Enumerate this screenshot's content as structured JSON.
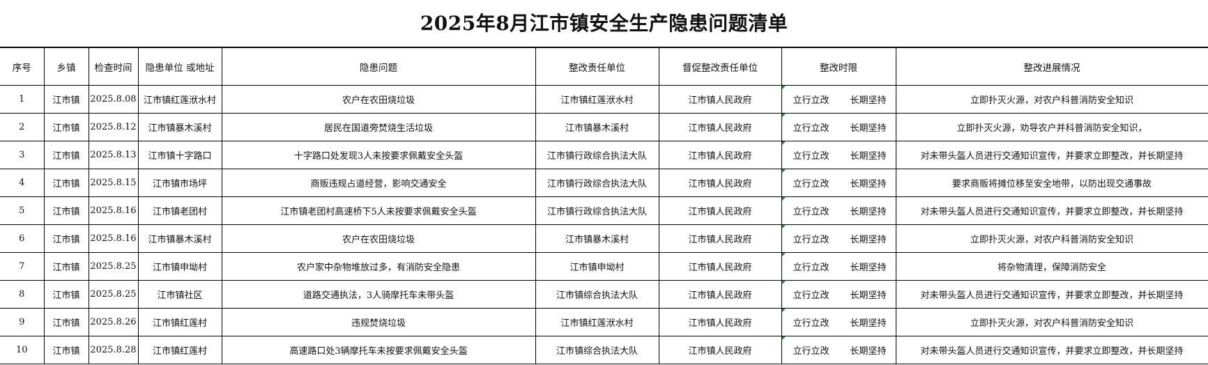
{
  "title": "2025年8月江市镇安全生产隐患问题清单",
  "headers": [
    "序号",
    "乡镇",
    "检查时间",
    "隐患单位 或地址",
    "隐患问题",
    "整改责任单位",
    "督促整改责任单位",
    "整改时限",
    "整改进展情况"
  ],
  "comment_indicator_color": "#1a8a1a",
  "rows": [
    {
      "no": "1",
      "town": "江市镇",
      "date": "2025.8.08",
      "unit": "江市镇红莲洑水村",
      "issue": "农户在农田烧垃圾",
      "resp": "江市镇红莲洑水村",
      "super": "江市镇人民政府",
      "deadline_a": "立行立改",
      "deadline_b": "长期坚持",
      "progress": "立即扑灭火源，对农户科普消防安全知识"
    },
    {
      "no": "2",
      "town": "江市镇",
      "date": "2025.8.12",
      "unit": "江市镇暴木溪村",
      "issue": "居民在国道旁焚烧生活垃圾",
      "resp": "江市镇暴木溪村",
      "super": "江市镇人民政府",
      "deadline_a": "立行立改",
      "deadline_b": "长期坚持",
      "progress": "立即扑灭火源，劝导农户并科普消防安全知识，"
    },
    {
      "no": "3",
      "town": "江市镇",
      "date": "2025.8.13",
      "unit": "江市镇十字路口",
      "issue": "十字路口处发现3人未按要求佩戴安全头盔",
      "resp": "江市镇行政综合执法大队",
      "super": "江市镇人民政府",
      "deadline_a": "立行立改",
      "deadline_b": "长期坚持",
      "progress": "对未带头盔人员进行交通知识宣传，并要求立即整改，并长期坚持"
    },
    {
      "no": "4",
      "town": "江市镇",
      "date": "2025.8.15",
      "unit": "江市镇市场坪",
      "issue": "商贩违规占道经营，影响交通安全",
      "resp": "江市镇行政综合执法大队",
      "super": "江市镇人民政府",
      "deadline_a": "立行立改",
      "deadline_b": "长期坚持",
      "progress": "要求商贩将摊位移至安全地带，以防出现交通事故"
    },
    {
      "no": "5",
      "town": "江市镇",
      "date": "2025.8.16",
      "unit": "江市镇老团村",
      "issue": "江市镇老团村高速桥下5人未按要求佩戴安全头盔",
      "resp": "江市镇行政综合执法大队",
      "super": "江市镇人民政府",
      "deadline_a": "立行立改",
      "deadline_b": "长期坚持",
      "progress": "对未带头盔人员进行交通知识宣传，并要求立即整改，并长期坚持"
    },
    {
      "no": "6",
      "town": "江市镇",
      "date": "2025.8.16",
      "unit": "江市镇暴木溪村",
      "issue": "农户在农田烧垃圾",
      "resp": "江市镇暴木溪村",
      "super": "江市镇人民政府",
      "deadline_a": "立行立改",
      "deadline_b": "长期坚持",
      "progress": "立即扑灭火源，对农户科普消防安全知识"
    },
    {
      "no": "7",
      "town": "江市镇",
      "date": "2025.8.25",
      "unit": "江市镇申坳村",
      "issue": "农户家中杂物堆放过多，有消防安全隐患",
      "resp": "江市镇申坳村",
      "super": "江市镇人民政府",
      "deadline_a": "立行立改",
      "deadline_b": "长期坚持",
      "progress": "将杂物清理，保障消防安全"
    },
    {
      "no": "8",
      "town": "江市镇",
      "date": "2025.8.25",
      "unit": "江市镇社区",
      "issue": "道路交通执法，3人骑摩托车未带头盔",
      "resp": "江市镇综合执法大队",
      "super": "江市镇人民政府",
      "deadline_a": "立行立改",
      "deadline_b": "长期坚持",
      "progress": "对未带头盔人员进行交通知识宣传，并要求立即整改，并长期坚持"
    },
    {
      "no": "9",
      "town": "江市镇",
      "date": "2025.8.26",
      "unit": "江市镇红莲村",
      "issue": "违规焚烧垃圾",
      "resp": "江市镇红莲洑水村",
      "super": "江市镇人民政府",
      "deadline_a": "立行立改",
      "deadline_b": "长期坚持",
      "progress": "立即扑灭火源，对农户科普消防安全知识"
    },
    {
      "no": "10",
      "town": "江市镇",
      "date": "2025.8.28",
      "unit": "江市镇红莲村",
      "issue": "高速路口处3辆摩托车未按要求佩戴安全头盔",
      "resp": "江市镇综合执法大队",
      "super": "江市镇人民政府",
      "deadline_a": "立行立改",
      "deadline_b": "长期坚持",
      "progress": "对未带头盔人员进行交通知识宣传，并要求立即整改，并长期坚持"
    }
  ]
}
